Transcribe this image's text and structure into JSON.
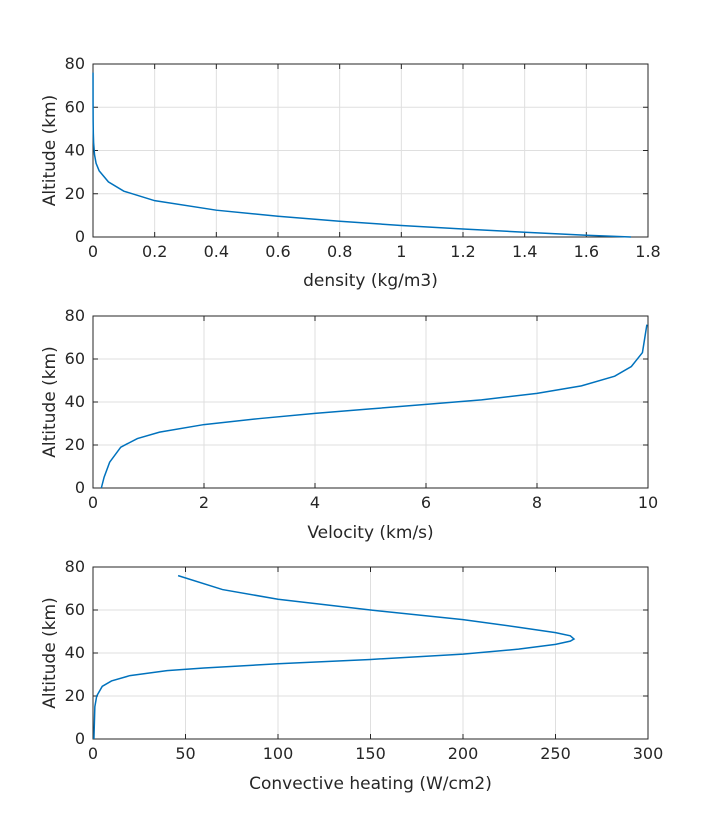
{
  "chart_data": [
    {
      "type": "line",
      "xlabel": "density (kg/m3)",
      "ylabel": "Altitude (km)",
      "xlim": [
        0,
        1.8
      ],
      "ylim": [
        0,
        80
      ],
      "xticks": [
        "0",
        "0.2",
        "0.4",
        "0.6",
        "0.8",
        "1",
        "1.2",
        "1.4",
        "1.6",
        "1.8"
      ],
      "yticks": [
        "0",
        "20",
        "40",
        "60",
        "80"
      ],
      "grid": true,
      "series": [
        {
          "name": "density",
          "color": "#0072bd",
          "x": [
            1.745,
            1.6,
            1.4,
            1.2,
            1.0,
            0.8,
            0.6,
            0.4,
            0.2,
            0.1,
            0.05,
            0.02,
            0.01,
            0.005,
            0.002,
            0.001,
            0.0005,
            0.0002,
            0.0001
          ],
          "y": [
            0,
            0.8,
            2.2,
            3.7,
            5.3,
            7.3,
            9.6,
            12.4,
            16.8,
            21.2,
            25.5,
            30.6,
            34.1,
            38.0,
            43.5,
            48.0,
            53.5,
            62.0,
            76.0
          ]
        }
      ]
    },
    {
      "type": "line",
      "xlabel": "Velocity (km/s)",
      "ylabel": "Altitude (km)",
      "xlim": [
        0,
        10
      ],
      "ylim": [
        0,
        80
      ],
      "xticks": [
        "0",
        "2",
        "4",
        "6",
        "8",
        "10"
      ],
      "yticks": [
        "0",
        "20",
        "40",
        "60",
        "80"
      ],
      "grid": true,
      "series": [
        {
          "name": "velocity",
          "color": "#0072bd",
          "x": [
            0.15,
            0.2,
            0.3,
            0.5,
            0.8,
            1.2,
            2.0,
            3.0,
            4.0,
            5.0,
            6.0,
            7.0,
            8.0,
            8.8,
            9.4,
            9.7,
            9.9,
            9.98
          ],
          "y": [
            0,
            5,
            12,
            19,
            23,
            26,
            29.5,
            32.3,
            34.7,
            36.8,
            38.9,
            41.0,
            44.0,
            47.5,
            52.0,
            56.5,
            63.0,
            76.0
          ]
        }
      ]
    },
    {
      "type": "line",
      "xlabel": "Convective heating (W/cm2)",
      "ylabel": "Altitude (km)",
      "xlim": [
        0,
        300
      ],
      "ylim": [
        0,
        80
      ],
      "xticks": [
        "0",
        "50",
        "100",
        "150",
        "200",
        "250",
        "300"
      ],
      "yticks": [
        "0",
        "20",
        "40",
        "60",
        "80"
      ],
      "grid": true,
      "series": [
        {
          "name": "convective heating",
          "color": "#0072bd",
          "x": [
            0.5,
            1,
            2,
            5,
            10,
            20,
            40,
            60,
            100,
            150,
            200,
            230,
            250,
            258,
            260,
            258,
            250,
            230,
            200,
            150,
            100,
            70,
            46
          ],
          "y": [
            0,
            15,
            20,
            24.5,
            27,
            29.5,
            31.8,
            33.0,
            35.0,
            37.0,
            39.5,
            41.8,
            44.0,
            45.5,
            46.5,
            48.0,
            49.5,
            52.0,
            55.5,
            60.0,
            65.0,
            69.5,
            76.0
          ]
        }
      ]
    }
  ]
}
